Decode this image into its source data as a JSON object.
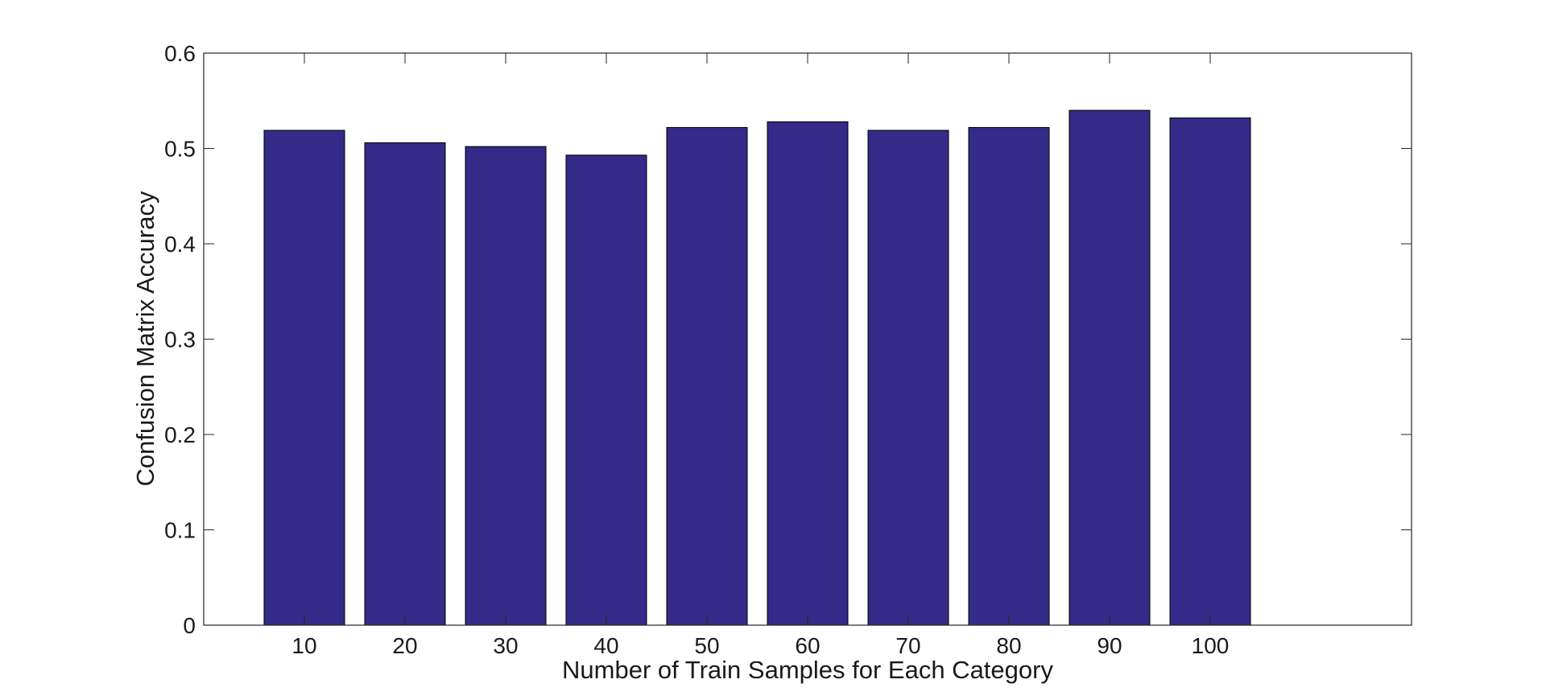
{
  "chart_data": {
    "type": "bar",
    "title": "",
    "xlabel": "Number of Train Samples for Each Category",
    "ylabel": "Confusion Matrix Accuracy",
    "categories": [
      "10",
      "20",
      "30",
      "40",
      "50",
      "60",
      "70",
      "80",
      "90",
      "100"
    ],
    "values": [
      0.519,
      0.506,
      0.502,
      0.493,
      0.522,
      0.528,
      0.519,
      0.522,
      0.54,
      0.532
    ],
    "x_category_range": [
      0,
      12
    ],
    "ylim": [
      0,
      0.6
    ],
    "yticks": [
      "0",
      "0.1",
      "0.2",
      "0.3",
      "0.4",
      "0.5",
      "0.6"
    ],
    "grid": false,
    "legend": "none",
    "bar_color": "#352a87",
    "edge_color": "#000000"
  }
}
